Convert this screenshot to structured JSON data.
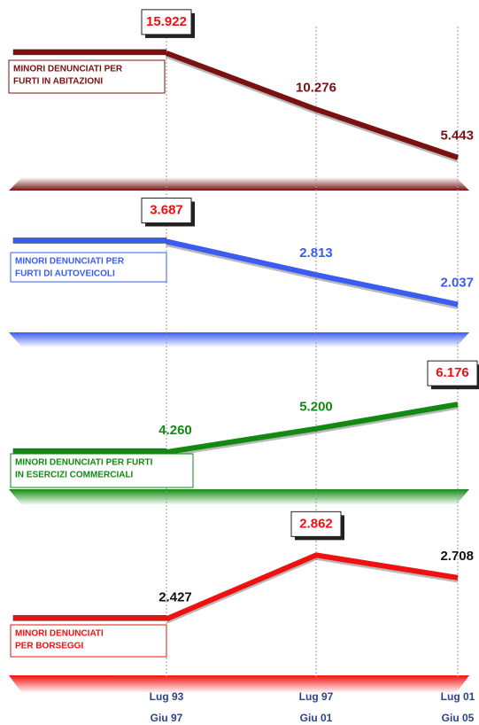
{
  "chart_data": [
    {
      "type": "line",
      "title": [
        "MINORI DENUNCIATI PER",
        "FURTI IN ABITAZIONI"
      ],
      "color": "#7a1010",
      "values": [
        15922,
        10276,
        5443
      ],
      "value_labels": [
        "15.922",
        "10.276",
        "5.443"
      ],
      "ylim": [
        0,
        20000
      ]
    },
    {
      "type": "line",
      "title": [
        "MINORI DENUNCIATI PER",
        "FURTI DI AUTOVEICOLI"
      ],
      "color": "#3a5cf0",
      "values": [
        3687,
        2813,
        2037
      ],
      "value_labels": [
        "3.687",
        "2.813",
        "2.037"
      ],
      "ylim": [
        0,
        4500
      ]
    },
    {
      "type": "line",
      "title": [
        "MINORI DENUNCIATI PER FURTI",
        "IN ESERCIZI COMMERCIALI"
      ],
      "color": "#128a12",
      "values": [
        4260,
        5200,
        6176
      ],
      "value_labels": [
        "4.260",
        "5.200",
        "6.176"
      ],
      "ylim": [
        0,
        7000
      ]
    },
    {
      "type": "line",
      "title": [
        "MINORI DENUNCIATI",
        "PER BORSEGGI"
      ],
      "color": "#ee1111",
      "values": [
        2427,
        2862,
        2708
      ],
      "value_labels": [
        "2.427",
        "2.862",
        "2.708"
      ],
      "ylim": [
        2000,
        3000
      ],
      "categories": [
        [
          "Lug 93",
          "Giu 97"
        ],
        [
          "Lug 97",
          "Giu 01"
        ],
        [
          "Lug 01",
          "Giu 05"
        ]
      ]
    }
  ]
}
